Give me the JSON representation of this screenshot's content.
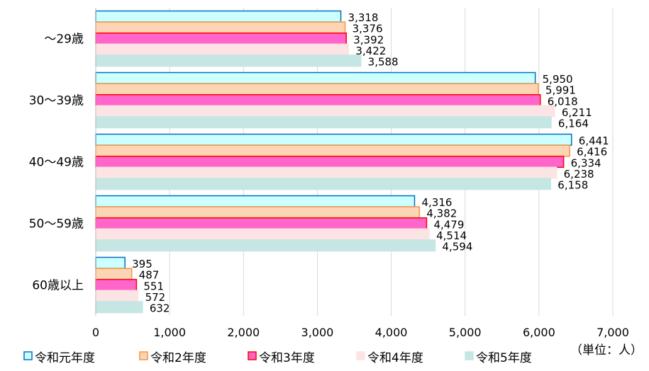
{
  "chart_data": {
    "type": "bar",
    "orientation": "horizontal",
    "categories": [
      "～29歳",
      "30～39歳",
      "40～49歳",
      "50～59歳",
      "60歳以上"
    ],
    "series": [
      {
        "name": "令和元年度",
        "values": [
          3318,
          5950,
          6441,
          4316,
          395
        ],
        "fill": "#ccffff",
        "stroke": "#0070c0"
      },
      {
        "name": "令和2年度",
        "values": [
          3376,
          5991,
          6416,
          4382,
          487
        ],
        "fill": "#fcd5b4",
        "stroke": "#f79646"
      },
      {
        "name": "令和3年度",
        "values": [
          3392,
          6018,
          6334,
          4479,
          551
        ],
        "fill": "#ff66cc",
        "stroke": "#ff0000"
      },
      {
        "name": "令和4年度",
        "values": [
          3422,
          6211,
          6238,
          4514,
          572
        ],
        "fill": "#fde4e4",
        "stroke": "#fde4e4"
      },
      {
        "name": "令和5年度",
        "values": [
          3588,
          6164,
          6158,
          4594,
          632
        ],
        "fill": "#c5e6e3",
        "stroke": "#c5e6e3"
      }
    ],
    "x_ticks": [
      "0",
      "1,000",
      "2,000",
      "3,000",
      "4,000",
      "5,000",
      "6,000",
      "7,000"
    ],
    "xlim": [
      0,
      7000
    ],
    "grid": true,
    "legend_position": "bottom",
    "unit_note": "（単位：人）",
    "data_labels": [
      [
        "3,318",
        "3,376",
        "3,392",
        "3,422",
        "3,588"
      ],
      [
        "5,950",
        "5,991",
        "6,018",
        "6,211",
        "6,164"
      ],
      [
        "6,441",
        "6,416",
        "6,334",
        "6,238",
        "6,158"
      ],
      [
        "4,316",
        "4,382",
        "4,479",
        "4,514",
        "4,594"
      ],
      [
        "395",
        "487",
        "551",
        "572",
        "632"
      ]
    ]
  }
}
